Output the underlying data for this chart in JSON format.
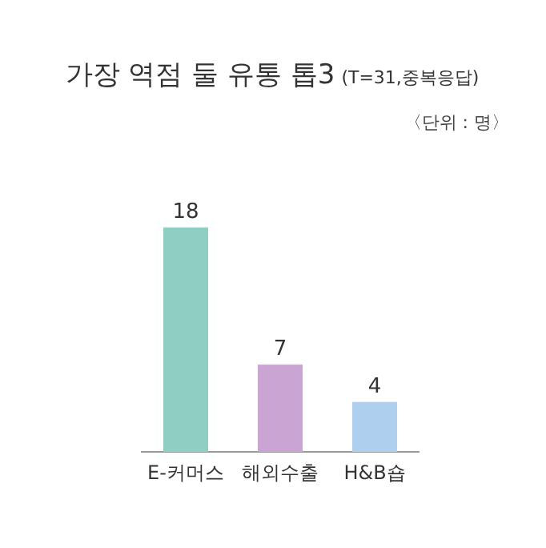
{
  "chart_data": {
    "type": "bar",
    "title": "가장 역점 둘 유통 톱3",
    "subtitle": "(T=31,중복응답)",
    "annotations": [
      "〈단위 : 명〉"
    ],
    "categories": [
      "E-커머스",
      "해외수출",
      "H&B숍"
    ],
    "values": [
      18,
      7,
      4
    ],
    "colors": [
      "#8fcfc3",
      "#caa4d3",
      "#aecfee"
    ],
    "data_labels": true
  }
}
